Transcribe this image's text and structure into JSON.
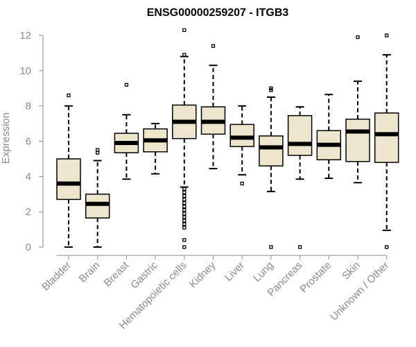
{
  "chart_data": {
    "type": "boxplot",
    "title": "ENSG00000259207 - ITGB3",
    "ylabel": "Expression",
    "xlabel": "",
    "ylim": [
      0,
      12
    ],
    "yticks": [
      0,
      2,
      4,
      6,
      8,
      10,
      12
    ],
    "box_fill": "#ede6cc",
    "groups": [
      {
        "name": "Bladder",
        "min": 0,
        "q1": 2.7,
        "median": 3.6,
        "q3": 5.0,
        "max": 8.0,
        "outliers": [
          8.6
        ]
      },
      {
        "name": "Brain",
        "min": 0,
        "q1": 1.65,
        "median": 2.45,
        "q3": 3.0,
        "max": 4.9,
        "outliers": [
          5.35,
          5.5
        ]
      },
      {
        "name": "Breast",
        "min": 3.85,
        "q1": 5.35,
        "median": 5.9,
        "q3": 6.45,
        "max": 7.5,
        "outliers": [
          9.2
        ]
      },
      {
        "name": "Gastric",
        "min": 4.15,
        "q1": 5.4,
        "median": 6.05,
        "q3": 6.7,
        "max": 7.0,
        "outliers": []
      },
      {
        "name": "Hematopoietic cells",
        "min": 3.4,
        "q1": 6.15,
        "median": 7.1,
        "q3": 8.05,
        "max": 10.8,
        "outliers": [
          12.3,
          10.9,
          3.3,
          3.1,
          2.9,
          2.7,
          2.5,
          2.3,
          2.1,
          1.9,
          1.7,
          1.5,
          1.3,
          1.1,
          0.4,
          0.0
        ]
      },
      {
        "name": "Kidney",
        "min": 4.45,
        "q1": 6.4,
        "median": 7.1,
        "q3": 7.95,
        "max": 10.3,
        "outliers": [
          11.4
        ]
      },
      {
        "name": "Liver",
        "min": 4.1,
        "q1": 5.7,
        "median": 6.2,
        "q3": 6.95,
        "max": 8.0,
        "outliers": [
          3.6
        ]
      },
      {
        "name": "Lung",
        "min": 3.15,
        "q1": 4.6,
        "median": 5.65,
        "q3": 6.3,
        "max": 8.5,
        "outliers": [
          8.9,
          9.0,
          0.0
        ]
      },
      {
        "name": "Pancreas",
        "min": 3.85,
        "q1": 5.2,
        "median": 5.85,
        "q3": 7.45,
        "max": 7.95,
        "outliers": [
          0.0
        ]
      },
      {
        "name": "Prostate",
        "min": 3.9,
        "q1": 4.95,
        "median": 5.8,
        "q3": 6.6,
        "max": 8.65,
        "outliers": []
      },
      {
        "name": "Skin",
        "min": 3.65,
        "q1": 4.85,
        "median": 6.55,
        "q3": 7.25,
        "max": 9.4,
        "outliers": [
          11.9
        ]
      },
      {
        "name": "Unknown / Other",
        "min": 0.95,
        "q1": 4.8,
        "median": 6.4,
        "q3": 7.6,
        "max": 10.9,
        "outliers": [
          12.0,
          0.0
        ]
      }
    ]
  }
}
